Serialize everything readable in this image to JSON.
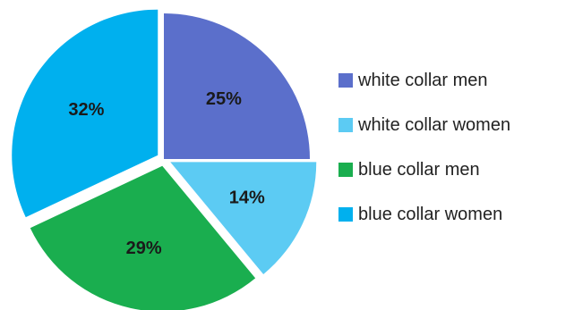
{
  "chart_data": {
    "type": "pie",
    "title": "",
    "legend_position": "right",
    "slices": [
      {
        "name": "white collar men",
        "value": 25,
        "label": "25%",
        "color": "#5B6FCB",
        "exploded": false
      },
      {
        "name": "white collar women",
        "value": 14,
        "label": "14%",
        "color": "#5CCBF3",
        "exploded": true
      },
      {
        "name": "blue collar men",
        "value": 29,
        "label": "29%",
        "color": "#1AAE4F",
        "exploded": true
      },
      {
        "name": "blue collar women",
        "value": 32,
        "label": "32%",
        "color": "#00B0EE",
        "exploded": true
      }
    ]
  }
}
